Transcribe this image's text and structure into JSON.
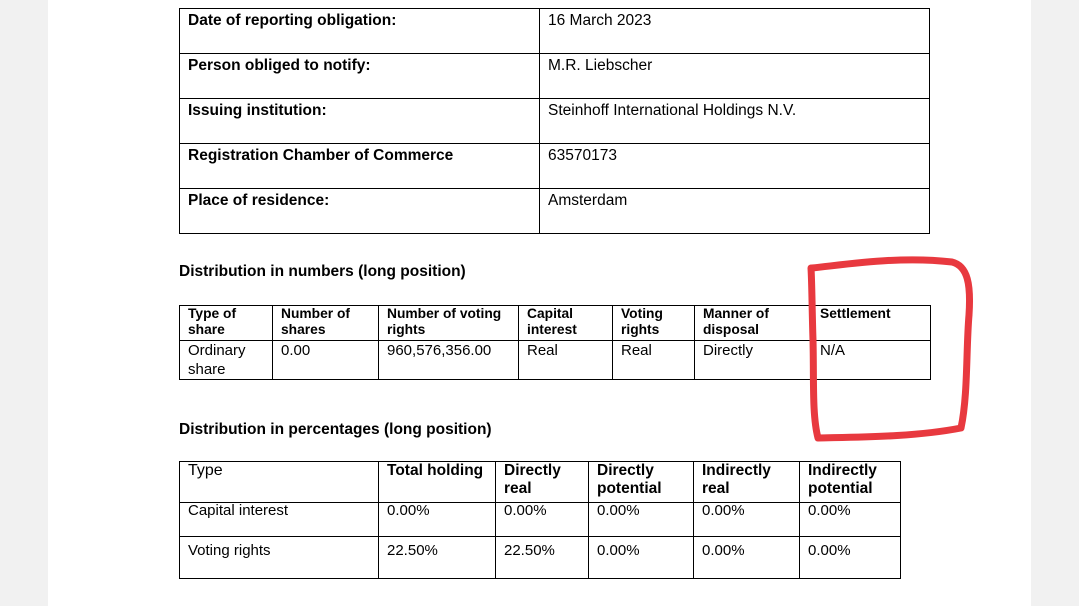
{
  "info_table": [
    {
      "label": "Date of reporting obligation:",
      "value": "16 March 2023"
    },
    {
      "label": "Person obliged to notify:",
      "value": "M.R. Liebscher"
    },
    {
      "label": "Issuing institution:",
      "value": "Steinhoff International Holdings N.V."
    },
    {
      "label": "Registration Chamber of Commerce",
      "value": "63570173"
    },
    {
      "label": "Place of residence:",
      "value": "Amsterdam"
    }
  ],
  "numbers_section": {
    "title": "Distribution in numbers (long position)",
    "headers": [
      "Type of share",
      "Number of shares",
      "Number of voting rights",
      "Capital interest",
      "Voting rights",
      "Manner of disposal",
      "Settlement"
    ],
    "row": [
      "Ordinary share",
      "0.00",
      "960,576,356.00",
      "Real",
      "Real",
      "Directly",
      "N/A"
    ]
  },
  "percent_section": {
    "title": "Distribution in percentages (long position)",
    "headers": [
      "Type",
      "Total holding",
      "Directly real",
      "Directly potential",
      "Indirectly real",
      "Indirectly potential"
    ],
    "rows": [
      [
        "Capital interest",
        "0.00%",
        "0.00%",
        "0.00%",
        "0.00%",
        "0.00%"
      ],
      [
        "Voting rights",
        "22.50%",
        "22.50%",
        "0.00%",
        "0.00%",
        "0.00%"
      ]
    ]
  },
  "annotation": {
    "color": "#e8393f",
    "target": "Settlement"
  }
}
